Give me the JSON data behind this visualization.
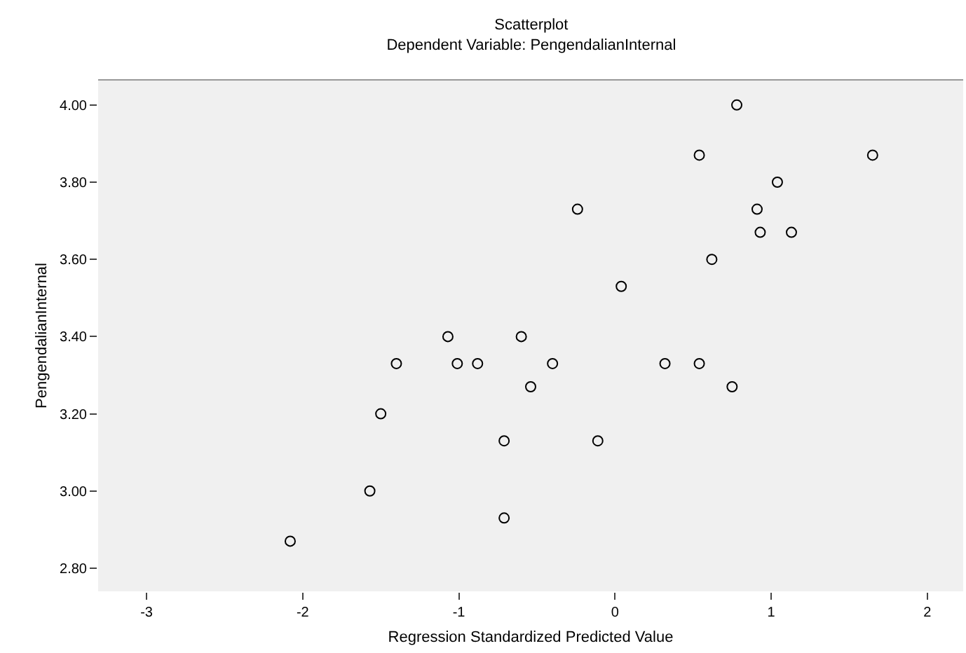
{
  "chart_data": {
    "type": "scatter",
    "title": "Scatterplot",
    "subtitle": "Dependent Variable: PengendalianInternal",
    "xlabel": "Regression Standardized Predicted Value",
    "ylabel": "PengendalianInternal",
    "x": [
      0.78,
      0.54,
      1.65,
      1.04,
      -0.24,
      0.91,
      0.93,
      1.13,
      0.62,
      0.04,
      -1.07,
      -0.6,
      -1.4,
      -1.01,
      -0.88,
      -0.4,
      0.32,
      0.54,
      -0.54,
      0.75,
      -1.5,
      -0.71,
      -0.11,
      -1.57,
      -0.71,
      -2.08
    ],
    "series": [
      {
        "color": "#000000",
        "values": [
          4.0,
          3.87,
          3.87,
          3.8,
          3.73,
          3.73,
          3.67,
          3.67,
          3.6,
          3.53,
          3.4,
          3.4,
          3.33,
          3.33,
          3.33,
          3.33,
          3.33,
          3.33,
          3.27,
          3.27,
          3.2,
          3.13,
          3.13,
          3.0,
          2.93,
          2.87
        ]
      }
    ],
    "xlim": [
      -3.31,
      2.23
    ],
    "ylim": [
      2.74,
      4.065
    ],
    "xticks": [
      -3,
      -2,
      -1,
      0,
      1,
      2
    ],
    "yticks": [
      {
        "value": 2.8,
        "label": "2.80"
      },
      {
        "value": 3.0,
        "label": "3.00"
      },
      {
        "value": 3.2,
        "label": "3.20"
      },
      {
        "value": 3.4,
        "label": "3.40"
      },
      {
        "value": 3.6,
        "label": "3.60"
      },
      {
        "value": 3.8,
        "label": "3.80"
      },
      {
        "value": 4.0,
        "label": "4.00"
      }
    ],
    "grid": false,
    "marker": "circle"
  }
}
